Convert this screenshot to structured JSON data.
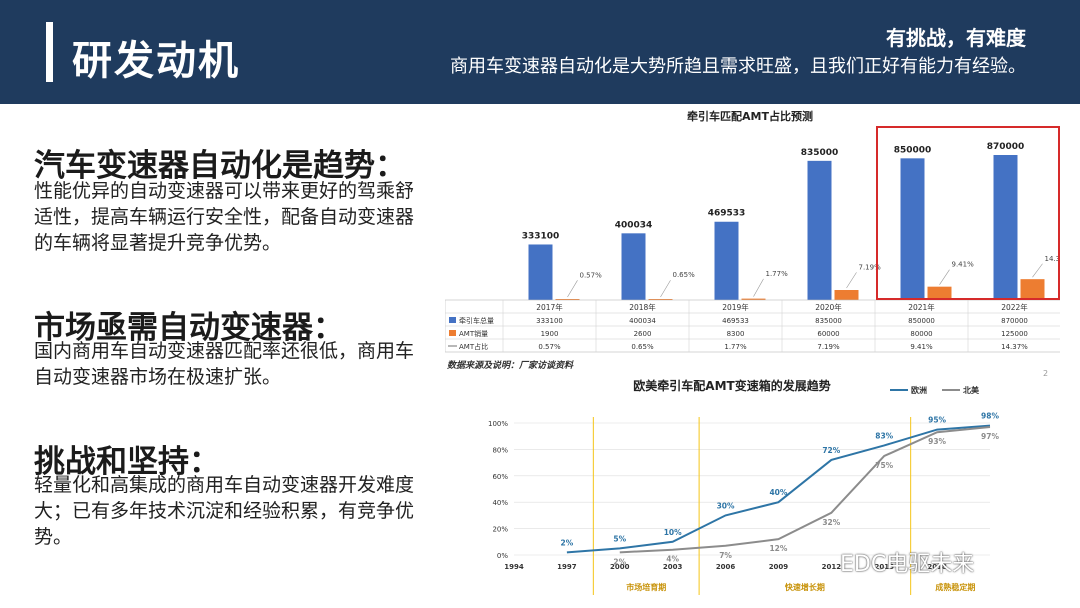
{
  "header": {
    "title": "研发动机",
    "subtitle_bold": "有挑战，有难度",
    "subtitle": "商用车变速器自动化是大势所趋且需求旺盛，且我们正好有能力有经验。"
  },
  "sections": [
    {
      "title": "汽车变速器自动化是趋势：",
      "body": "性能优异的自动变速器可以带来更好的驾乘舒适性，提高车辆运行安全性，配备自动变速器的车辆将显著提升竞争优势。"
    },
    {
      "title": "市场亟需自动变速器：",
      "body": "国内商用车自动变速器匹配率还很低，商用车自动变速器市场在极速扩张。"
    },
    {
      "title": "挑战和坚持：",
      "body": "轻量化和高集成的商用车自动变速器开发难度大；已有多年技术沉淀和经验积累，有竞争优势。"
    }
  ],
  "footer": {
    "source_note": "数据来源及说明：厂家访谈资料",
    "page_number": "2",
    "watermark": "EDC电驱未来"
  },
  "chart_data": [
    {
      "type": "bar",
      "title": "牵引车匹配AMT占比预测",
      "categories": [
        "2017年",
        "2018年",
        "2019年",
        "2020年",
        "2021年",
        "2022年"
      ],
      "series": [
        {
          "name": "牵引车总量",
          "values": [
            333100,
            400034,
            469533,
            835000,
            850000,
            870000
          ],
          "labels": [
            "333100",
            "400034",
            "469533",
            "835000",
            "850000",
            "870000"
          ],
          "color": "#4472c4"
        },
        {
          "name": "AMT销量",
          "values": [
            1900,
            2600,
            8300,
            60000,
            80000,
            125000
          ],
          "labels": [
            "1900",
            "2600",
            "8300",
            "60000",
            "80000",
            "125000"
          ],
          "color": "#ed7d31"
        },
        {
          "name": "AMT占比",
          "values": [
            0.57,
            0.65,
            1.77,
            7.19,
            9.41,
            14.37
          ],
          "labels": [
            "0.57%",
            "0.65%",
            "1.77%",
            "7.19%",
            "9.41%",
            "14.37%"
          ],
          "color": "#888888"
        }
      ],
      "ylim": [
        0,
        900000
      ],
      "highlight_categories": [
        "2021年",
        "2022年"
      ],
      "highlight_color": "#d62a2a"
    },
    {
      "type": "line",
      "title": "欧美牵引车配AMT变速箱的发展趋势",
      "x": [
        "1994",
        "1997",
        "2000",
        "2003",
        "2006",
        "2009",
        "2012",
        "2015",
        "2018"
      ],
      "yticks": [
        "0%",
        "20%",
        "40%",
        "60%",
        "80%",
        "100%"
      ],
      "ylim": [
        0,
        100
      ],
      "series": [
        {
          "name": "欧洲",
          "color": "#2e75a6",
          "points": [
            [
              1997,
              2
            ],
            [
              2000,
              5
            ],
            [
              2003,
              10
            ],
            [
              2006,
              30
            ],
            [
              2009,
              40
            ],
            [
              2012,
              72
            ],
            [
              2015,
              83
            ],
            [
              2018,
              95
            ],
            [
              2021,
              98
            ]
          ],
          "labels": [
            "2%",
            "5%",
            "10%",
            "30%",
            "40%",
            "72%",
            "83%",
            "95%",
            "98%"
          ]
        },
        {
          "name": "北美",
          "color": "#8c8c8c",
          "points": [
            [
              2000,
              2
            ],
            [
              2003,
              4
            ],
            [
              2006,
              7
            ],
            [
              2009,
              12
            ],
            [
              2012,
              32
            ],
            [
              2015,
              75
            ],
            [
              2018,
              93
            ],
            [
              2021,
              97
            ]
          ],
          "labels": [
            "2%",
            "4%",
            "7%",
            "12%",
            "32%",
            "75%",
            "93%",
            "97%"
          ]
        }
      ],
      "phases": [
        {
          "label": "市场培育期",
          "from": 1998.5,
          "to": 2004.5
        },
        {
          "label": "快速增长期",
          "from": 2004.5,
          "to": 2016.5
        },
        {
          "label": "成熟稳定期",
          "from": 2016.5,
          "to": 2022
        }
      ],
      "phase_color": "#f5c518",
      "phase_text_color": "#c8930a"
    }
  ]
}
